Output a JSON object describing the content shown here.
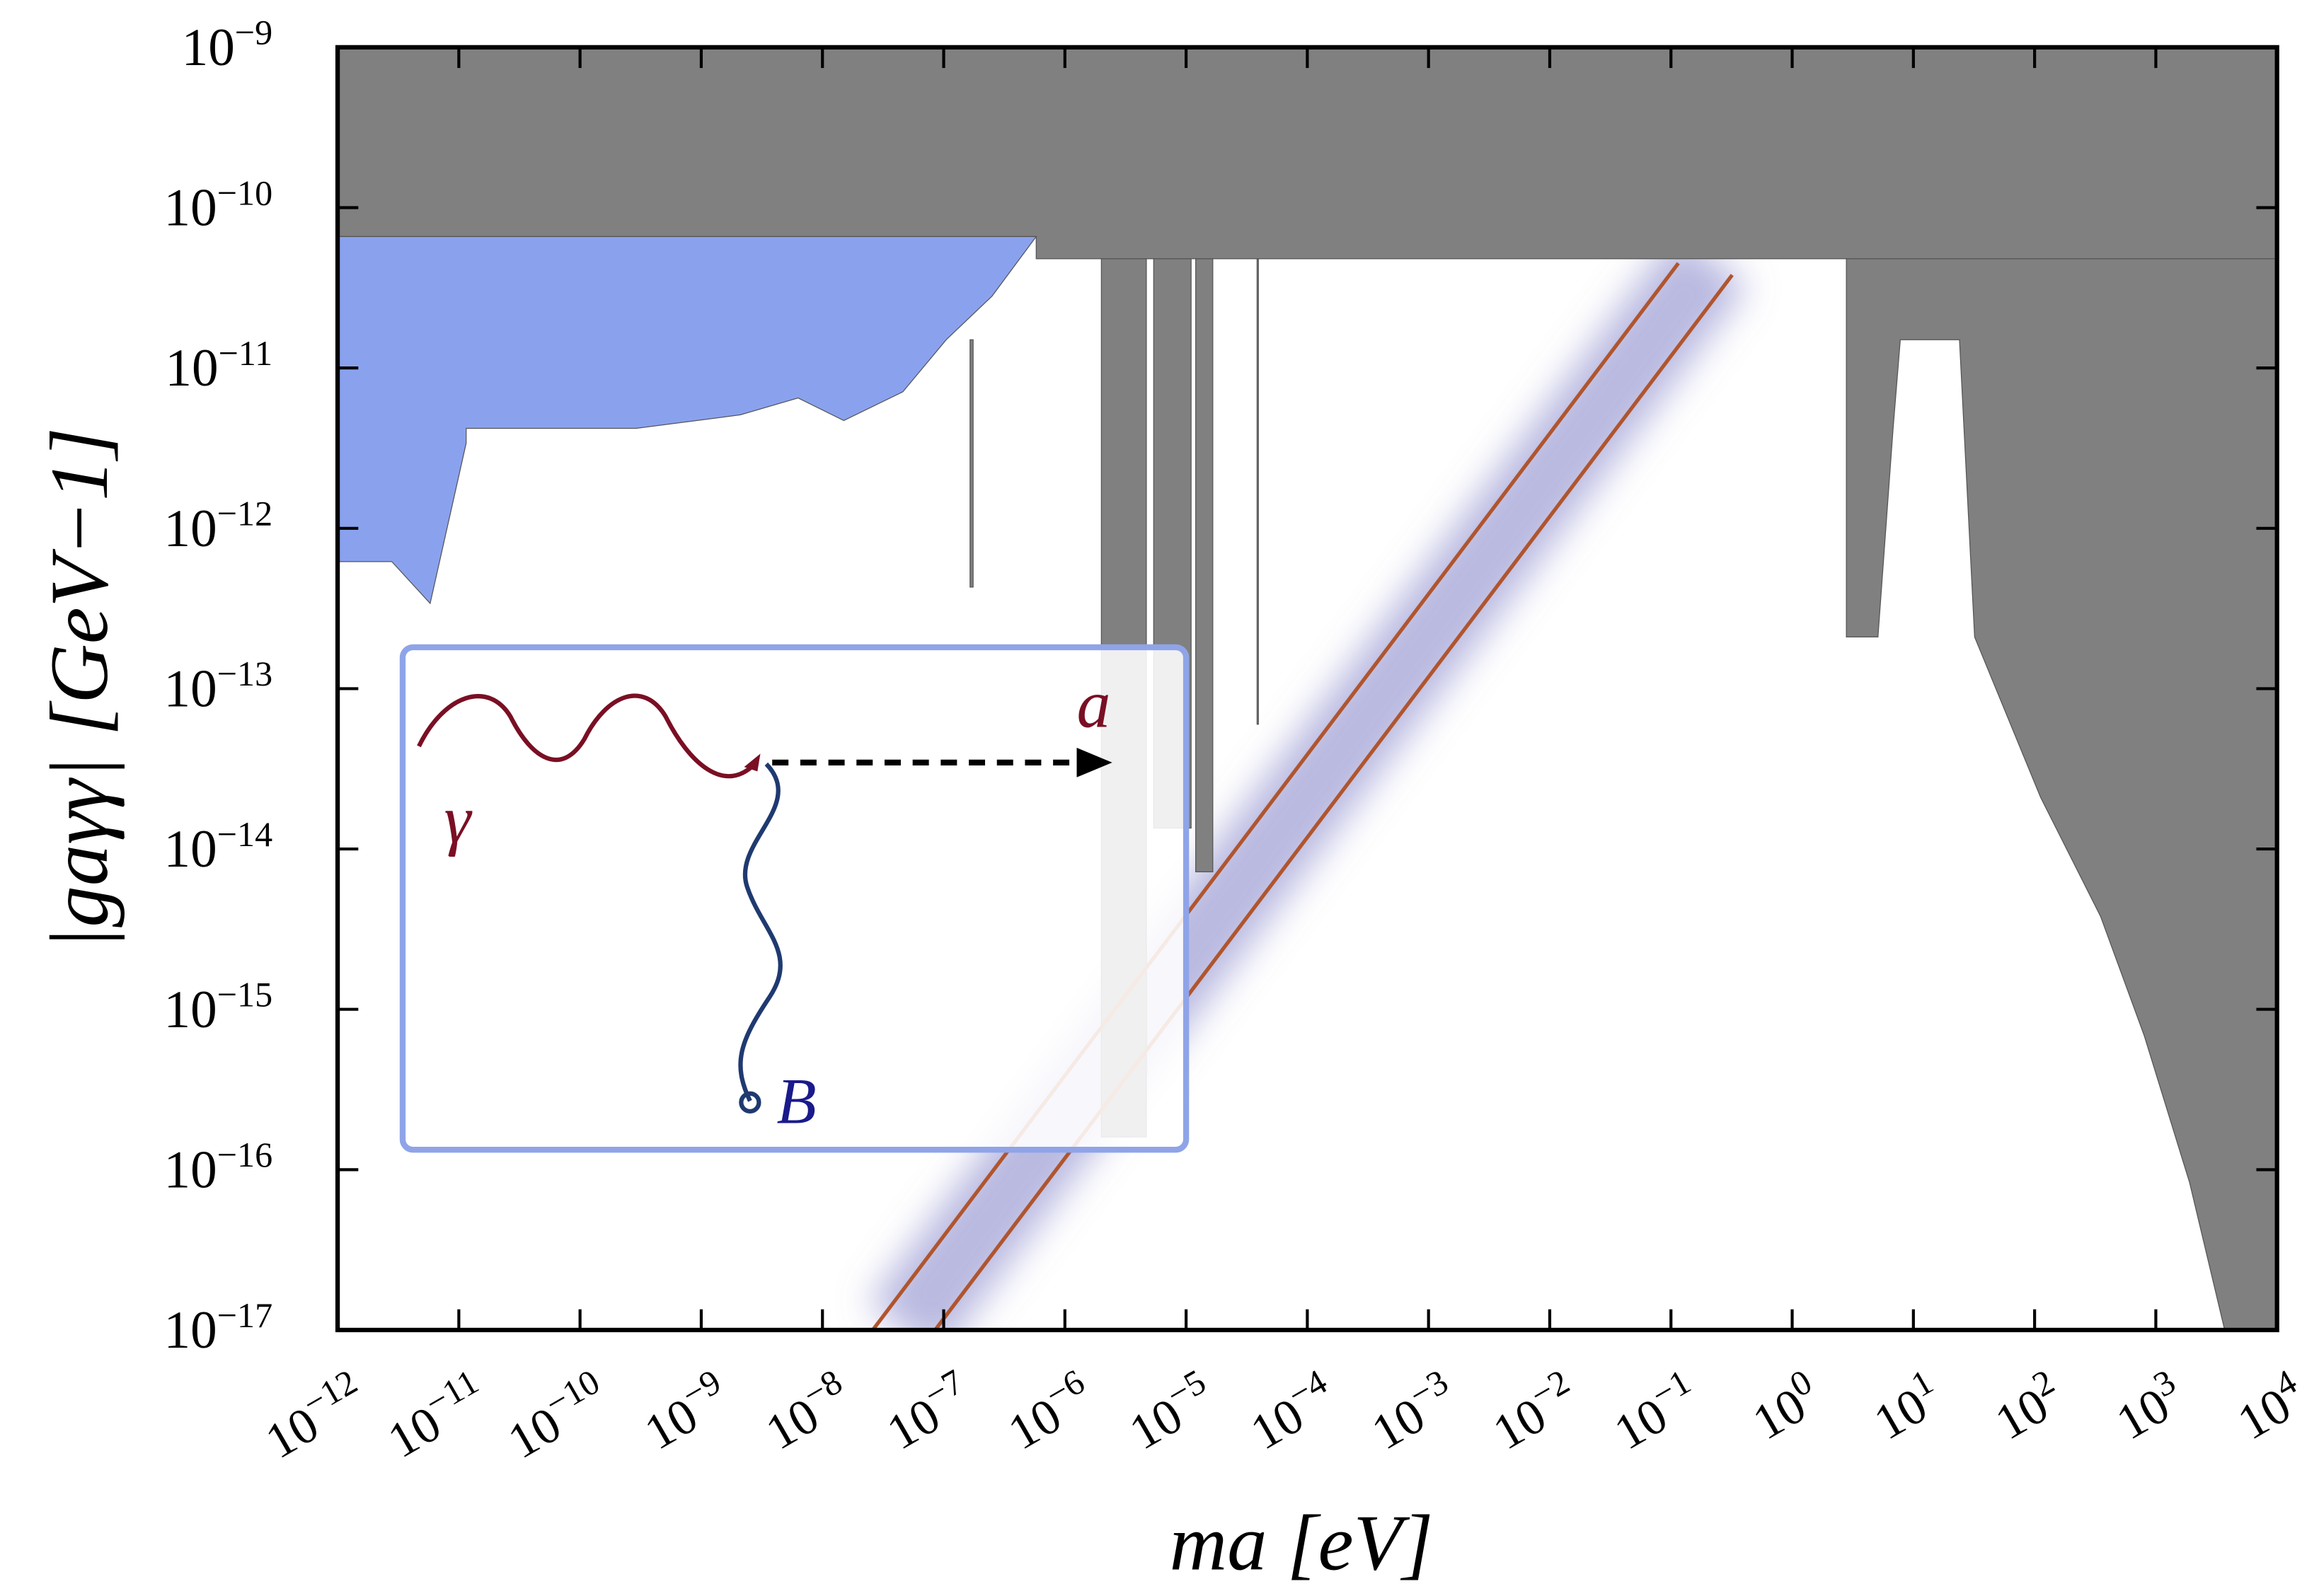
{
  "chart_data": {
    "type": "line",
    "xlabel": "ma [eV]",
    "ylabel": "|gaγγ| [GeV−1]",
    "xscale": "log",
    "yscale": "log",
    "xlim": [
      1e-12,
      10000.0
    ],
    "ylim": [
      1e-17,
      1e-09
    ],
    "xticks": [
      {
        "value": 1e-12,
        "label": "10−12"
      },
      {
        "value": 1e-11,
        "label": "10−11"
      },
      {
        "value": 1e-10,
        "label": "10−10"
      },
      {
        "value": 1e-09,
        "label": "10−9"
      },
      {
        "value": 1e-08,
        "label": "10−8"
      },
      {
        "value": 1e-07,
        "label": "10−7"
      },
      {
        "value": 1e-06,
        "label": "10−6"
      },
      {
        "value": 1e-05,
        "label": "10−5"
      },
      {
        "value": 0.0001,
        "label": "10−4"
      },
      {
        "value": 0.001,
        "label": "10−3"
      },
      {
        "value": 0.01,
        "label": "10−2"
      },
      {
        "value": 0.1,
        "label": "10−1"
      },
      {
        "value": 1,
        "label": "100"
      },
      {
        "value": 10,
        "label": "101"
      },
      {
        "value": 100,
        "label": "102"
      },
      {
        "value": 1000,
        "label": "103"
      },
      {
        "value": 10000,
        "label": "104"
      }
    ],
    "yticks": [
      {
        "value": 1e-17,
        "label": "10−17"
      },
      {
        "value": 1e-16,
        "label": "10−16"
      },
      {
        "value": 1e-15,
        "label": "10−15"
      },
      {
        "value": 1e-14,
        "label": "10−14"
      },
      {
        "value": 1e-13,
        "label": "10−13"
      },
      {
        "value": 1e-12,
        "label": "10−12"
      },
      {
        "value": 1e-11,
        "label": "10−11"
      },
      {
        "value": 1e-10,
        "label": "10−10"
      },
      {
        "value": 1e-09,
        "label": "10−9"
      }
    ],
    "regions": [
      {
        "color": "#808080",
        "x": [
          1e-12,
          10000.0,
          10000.0,
          5.8e-07,
          5.8e-07,
          1e-12
        ],
        "y": [
          1e-09,
          1e-09,
          4.8e-11,
          4.8e-11,
          6.6e-11,
          6.6e-11
        ]
      },
      {
        "color": "#808080",
        "x": [
          2.8,
          10000.0,
          10000.0,
          3700,
          1900,
          800,
          350,
          112,
          32,
          24,
          7.8,
          6.8,
          5.1,
          2.8
        ],
        "y": [
          4.8e-11,
          4.8e-11,
          1e-17,
          1e-17,
          8.3e-17,
          6.9e-16,
          3.8e-15,
          2.1e-14,
          2.1e-13,
          1.5e-11,
          1.5e-11,
          4.2e-12,
          2.1e-13,
          2.1e-13
        ]
      },
      {
        "color": "#808080",
        "x": [
          2e-06,
          2e-06,
          4.7e-06,
          4.7e-06
        ],
        "y": [
          4.8e-11,
          1.6e-16,
          1.6e-16,
          4.8e-11
        ]
      },
      {
        "color": "#808080",
        "x": [
          5.4e-06,
          5.4e-06,
          1.1e-05,
          1.1e-05
        ],
        "y": [
          4.8e-11,
          1.35e-14,
          1.35e-14,
          4.8e-11
        ]
      },
      {
        "color": "#808080",
        "x": [
          1.2e-05,
          1.2e-05,
          1.66e-05,
          1.66e-05
        ],
        "y": [
          4.8e-11,
          7.2e-15,
          7.2e-15,
          4.8e-11
        ]
      },
      {
        "color": "#808080",
        "x": [
          1.65e-07,
          1.65e-07,
          1.75e-07,
          1.75e-07
        ],
        "y": [
          1.5e-11,
          4.3e-13,
          4.3e-13,
          1.5e-11
        ]
      },
      {
        "color": "#808080",
        "x": [
          3.85e-05,
          3.85e-05,
          3.95e-05,
          3.95e-05
        ],
        "y": [
          4.8e-11,
          6e-14,
          6e-14,
          4.8e-11
        ]
      },
      {
        "color": "#8aa2ee",
        "x": [
          1e-12,
          5.8e-07,
          2.5e-07,
          1.05e-07,
          4.6e-08,
          1.5e-08,
          6.3e-09,
          2.1e-09,
          2.9e-10,
          1.15e-11,
          1.15e-11,
          5.8e-12,
          2.8e-12,
          1e-12
        ],
        "y": [
          6.6e-11,
          6.6e-11,
          2.8e-11,
          1.5e-11,
          7.1e-12,
          4.7e-12,
          6.5e-12,
          5.1e-12,
          4.2e-12,
          4.2e-12,
          3.4e-12,
          3.4e-13,
          6.2e-13,
          6.2e-13
        ]
      }
    ],
    "band": {
      "color": "#8080c8",
      "x": [
        4.7e-08,
        0.22
      ],
      "y": [
        1e-17,
        4.8e-11
      ]
    },
    "series": [
      {
        "color": "#b0552e",
        "x": [
          2.6e-08,
          0.115
        ],
        "y": [
          1e-17,
          4.5e-11
        ]
      },
      {
        "color": "#b0552e",
        "x": [
          8.5e-08,
          0.32
        ],
        "y": [
          1e-17,
          3.8e-11
        ]
      }
    ],
    "inset_labels": [
      "γ",
      "a",
      "B"
    ]
  }
}
